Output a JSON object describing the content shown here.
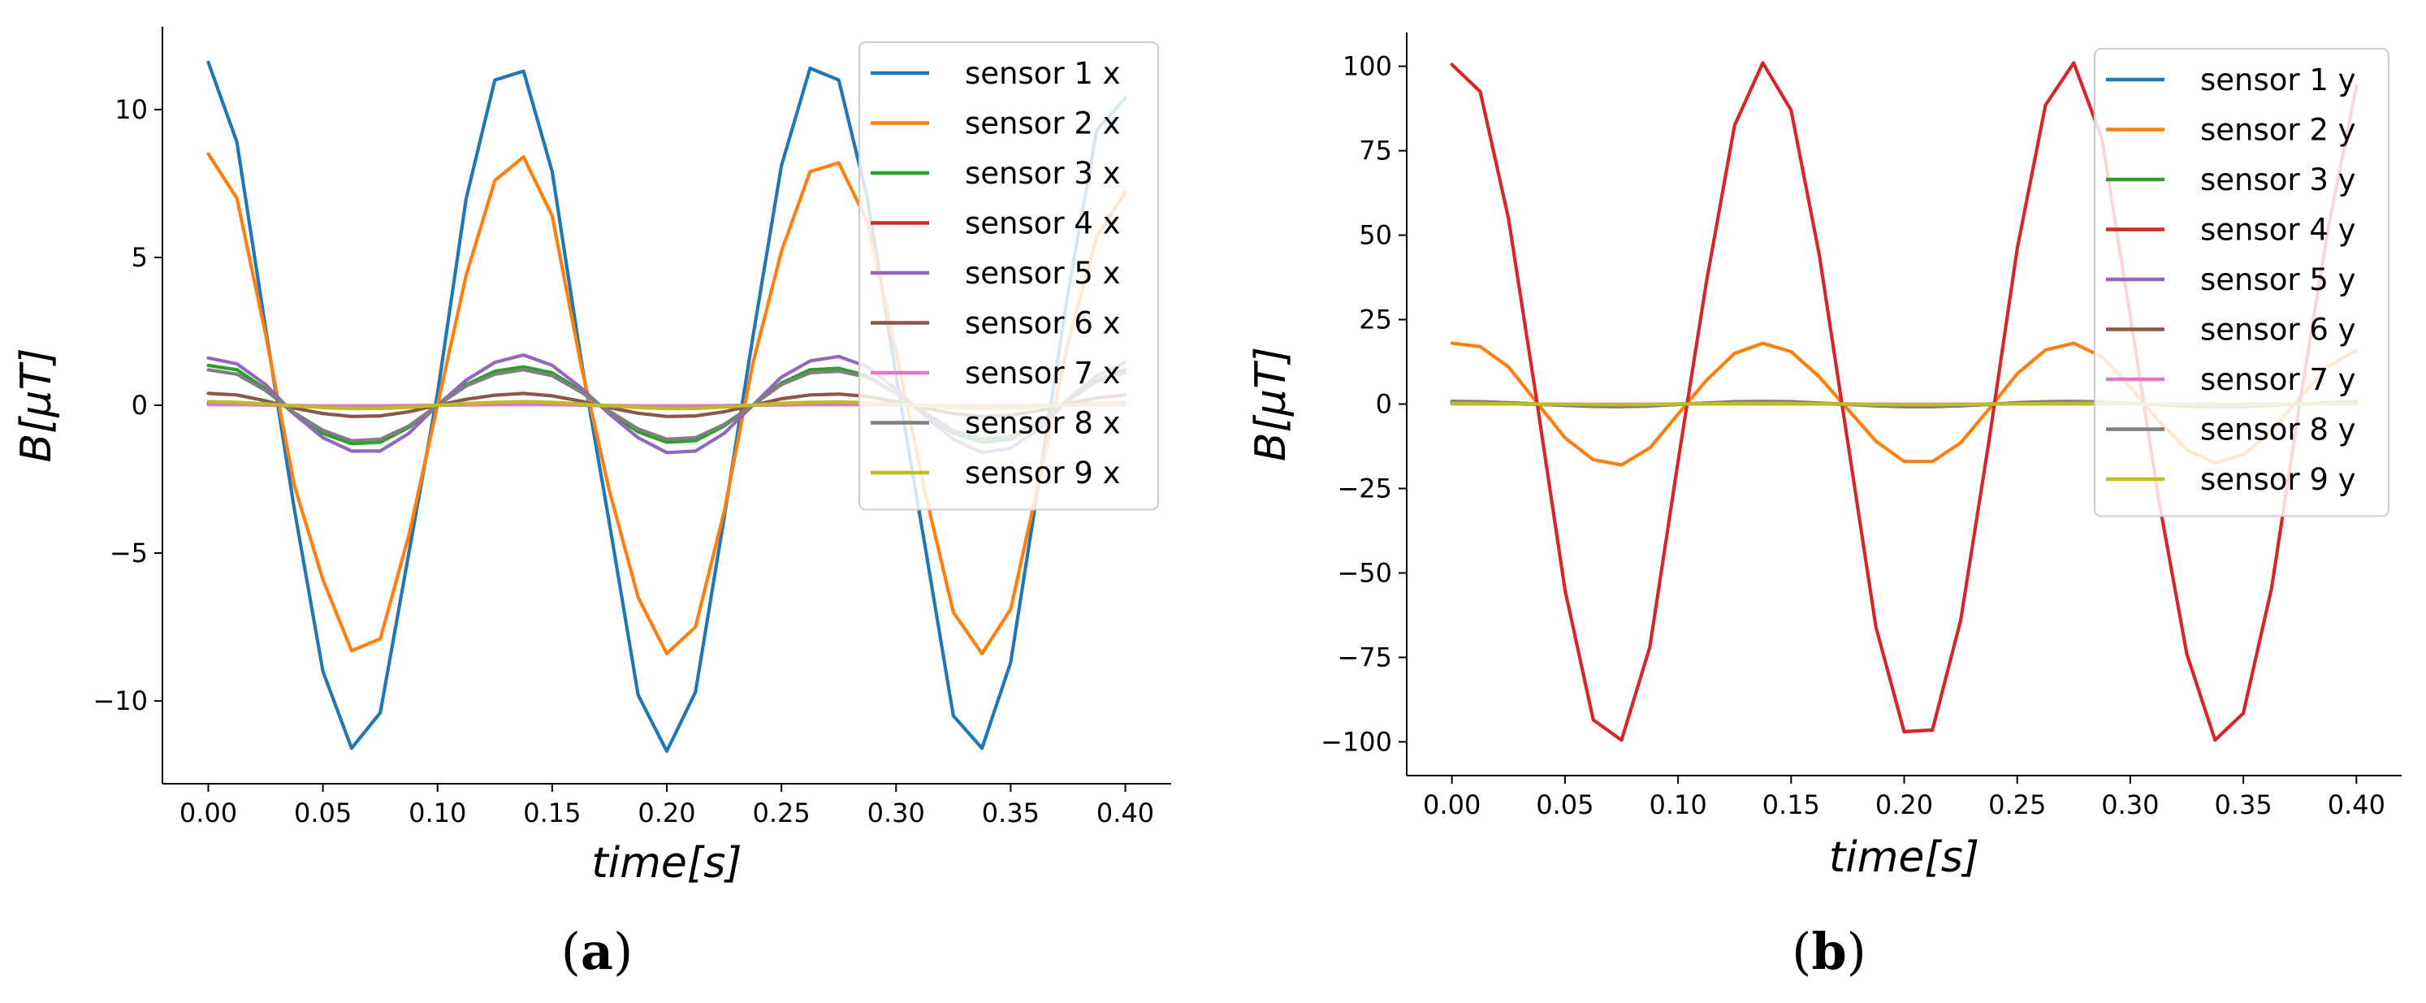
{
  "chart_data": [
    {
      "type": "line",
      "panel": "a",
      "caption_open": "(",
      "caption_letter": "a",
      "caption_close": ")",
      "xlabel": "time[s]",
      "ylabel": "B[μT]",
      "xlim": [
        -0.02,
        0.42
      ],
      "ylim": [
        -12.8,
        12.8
      ],
      "xticks": [
        0.0,
        0.05,
        0.1,
        0.15,
        0.2,
        0.25,
        0.3,
        0.35,
        0.4
      ],
      "xtick_labels": [
        "0.00",
        "0.05",
        "0.10",
        "0.15",
        "0.20",
        "0.25",
        "0.30",
        "0.35",
        "0.40"
      ],
      "yticks": [
        -10,
        -5,
        0,
        5,
        10
      ],
      "ytick_labels": [
        "−10",
        "−5",
        "0",
        "5",
        "10"
      ],
      "legend_position": "top-right",
      "x": [
        0.0,
        0.0125,
        0.025,
        0.0375,
        0.05,
        0.0625,
        0.075,
        0.0875,
        0.1,
        0.1125,
        0.125,
        0.1375,
        0.15,
        0.1625,
        0.175,
        0.1875,
        0.2,
        0.2125,
        0.225,
        0.2375,
        0.25,
        0.2625,
        0.275,
        0.2875,
        0.3,
        0.3125,
        0.325,
        0.3375,
        0.35,
        0.3625,
        0.375,
        0.3875,
        0.4
      ],
      "series": [
        {
          "name": "sensor 1 x",
          "color": "#1f77b4",
          "values": [
            11.6,
            8.9,
            2.6,
            -3.5,
            -9.0,
            -11.6,
            -10.4,
            -5.0,
            0.4,
            7.0,
            11.0,
            11.3,
            7.9,
            1.6,
            -4.0,
            -9.8,
            -11.7,
            -9.7,
            -3.8,
            2.3,
            8.1,
            11.4,
            11.0,
            7.0,
            1.0,
            -4.7,
            -10.5,
            -11.6,
            -8.7,
            -2.5,
            3.8,
            9.3,
            10.4
          ]
        },
        {
          "name": "sensor 2 x",
          "color": "#ff7f0e",
          "values": [
            8.5,
            7.0,
            2.4,
            -2.7,
            -5.9,
            -8.3,
            -7.9,
            -4.4,
            0.0,
            4.4,
            7.6,
            8.4,
            6.4,
            1.4,
            -2.9,
            -6.5,
            -8.4,
            -7.5,
            -3.6,
            1.4,
            5.2,
            7.9,
            8.2,
            6.2,
            1.8,
            -2.9,
            -7.0,
            -8.4,
            -6.9,
            -2.5,
            2.1,
            5.7,
            7.2
          ]
        },
        {
          "name": "sensor 3 x",
          "color": "#2ca02c",
          "values": [
            1.35,
            1.2,
            0.55,
            -0.3,
            -0.95,
            -1.3,
            -1.25,
            -0.75,
            0.0,
            0.7,
            1.15,
            1.3,
            1.1,
            0.5,
            -0.25,
            -0.9,
            -1.25,
            -1.2,
            -0.7,
            0.0,
            0.75,
            1.2,
            1.25,
            1.0,
            0.4,
            -0.3,
            -0.95,
            -1.25,
            -1.15,
            -0.6,
            0.2,
            0.85,
            1.2
          ]
        },
        {
          "name": "sensor 4 x",
          "color": "#d62728",
          "values": [
            0.05,
            0.04,
            0.01,
            -0.02,
            -0.04,
            -0.05,
            -0.04,
            -0.02,
            0.0,
            0.02,
            0.04,
            0.05,
            0.04,
            0.01,
            -0.02,
            -0.04,
            -0.05,
            -0.04,
            -0.02,
            0.0,
            0.03,
            0.04,
            0.05,
            0.04,
            0.01,
            -0.02,
            -0.04,
            -0.05,
            -0.04,
            -0.02,
            0.01,
            0.03,
            0.04
          ]
        },
        {
          "name": "sensor 5 x",
          "color": "#9467bd",
          "values": [
            1.6,
            1.4,
            0.7,
            -0.3,
            -1.1,
            -1.55,
            -1.55,
            -0.95,
            0.0,
            0.85,
            1.45,
            1.7,
            1.35,
            0.6,
            -0.3,
            -1.1,
            -1.6,
            -1.55,
            -0.95,
            0.0,
            0.95,
            1.5,
            1.65,
            1.3,
            0.55,
            -0.35,
            -1.15,
            -1.6,
            -1.45,
            -0.8,
            0.2,
            1.0,
            1.45
          ]
        },
        {
          "name": "sensor 6 x",
          "color": "#8c564b",
          "values": [
            0.4,
            0.35,
            0.15,
            -0.1,
            -0.28,
            -0.38,
            -0.36,
            -0.22,
            0.0,
            0.2,
            0.34,
            0.4,
            0.32,
            0.14,
            -0.08,
            -0.27,
            -0.38,
            -0.36,
            -0.22,
            0.0,
            0.22,
            0.35,
            0.38,
            0.3,
            0.12,
            -0.1,
            -0.28,
            -0.38,
            -0.34,
            -0.18,
            0.05,
            0.25,
            0.35
          ]
        },
        {
          "name": "sensor 7 x",
          "color": "#e377c2",
          "values": [
            0.02,
            0.02,
            0.01,
            -0.01,
            -0.02,
            -0.02,
            -0.02,
            -0.01,
            0.0,
            0.01,
            0.02,
            0.02,
            0.02,
            0.01,
            -0.01,
            -0.02,
            -0.02,
            -0.02,
            -0.01,
            0.0,
            0.01,
            0.02,
            0.02,
            0.02,
            0.01,
            -0.01,
            -0.02,
            -0.02,
            -0.02,
            -0.01,
            0.0,
            0.01,
            0.02
          ]
        },
        {
          "name": "sensor 8 x",
          "color": "#7f7f7f",
          "values": [
            1.2,
            1.05,
            0.5,
            -0.25,
            -0.85,
            -1.2,
            -1.15,
            -0.7,
            0.0,
            0.65,
            1.05,
            1.2,
            1.0,
            0.45,
            -0.2,
            -0.8,
            -1.15,
            -1.1,
            -0.65,
            0.0,
            0.7,
            1.1,
            1.15,
            0.95,
            0.4,
            -0.25,
            -0.85,
            -1.15,
            -1.05,
            -0.55,
            0.15,
            0.8,
            1.1
          ]
        },
        {
          "name": "sensor 9 x",
          "color": "#bcbd22",
          "values": [
            0.12,
            0.1,
            0.05,
            -0.02,
            -0.08,
            -0.11,
            -0.11,
            -0.07,
            0.0,
            0.06,
            0.1,
            0.12,
            0.1,
            0.04,
            -0.02,
            -0.08,
            -0.11,
            -0.11,
            -0.06,
            0.0,
            0.07,
            0.1,
            0.11,
            0.09,
            0.04,
            -0.02,
            -0.08,
            -0.11,
            -0.1,
            -0.05,
            0.01,
            0.07,
            0.1
          ]
        }
      ]
    },
    {
      "type": "line",
      "panel": "b",
      "caption_open": "(",
      "caption_letter": "b",
      "caption_close": ")",
      "xlabel": "time[s]",
      "ylabel": "B[μT]",
      "xlim": [
        -0.02,
        0.42
      ],
      "ylim": [
        -110,
        110
      ],
      "xticks": [
        0.0,
        0.05,
        0.1,
        0.15,
        0.2,
        0.25,
        0.3,
        0.35,
        0.4
      ],
      "xtick_labels": [
        "0.00",
        "0.05",
        "0.10",
        "0.15",
        "0.20",
        "0.25",
        "0.30",
        "0.35",
        "0.40"
      ],
      "yticks": [
        -100,
        -75,
        -50,
        -25,
        0,
        25,
        50,
        75,
        100
      ],
      "ytick_labels": [
        "−100",
        "−75",
        "−50",
        "−25",
        "0",
        "25",
        "50",
        "75",
        "100"
      ],
      "legend_position": "top-right",
      "x": [
        0.0,
        0.0125,
        0.025,
        0.0375,
        0.05,
        0.0625,
        0.075,
        0.0875,
        0.1,
        0.1125,
        0.125,
        0.1375,
        0.15,
        0.1625,
        0.175,
        0.1875,
        0.2,
        0.2125,
        0.225,
        0.2375,
        0.25,
        0.2625,
        0.275,
        0.2875,
        0.3,
        0.3125,
        0.325,
        0.3375,
        0.35,
        0.3625,
        0.375,
        0.3875,
        0.4
      ],
      "series": [
        {
          "name": "sensor 1 y",
          "color": "#1f77b4",
          "values": [
            0.4,
            0.3,
            0.1,
            -0.1,
            -0.3,
            -0.4,
            -0.4,
            -0.2,
            0.0,
            0.2,
            0.4,
            0.4,
            0.3,
            0.1,
            -0.1,
            -0.3,
            -0.4,
            -0.4,
            -0.2,
            0.0,
            0.2,
            0.4,
            0.4,
            0.3,
            0.1,
            -0.1,
            -0.3,
            -0.4,
            -0.4,
            -0.2,
            0.0,
            0.2,
            0.3
          ]
        },
        {
          "name": "sensor 2 y",
          "color": "#ff7f0e",
          "values": [
            18.0,
            17.0,
            11.0,
            0.5,
            -10.0,
            -16.5,
            -18.0,
            -13.0,
            -3.0,
            7.0,
            15.0,
            18.0,
            15.5,
            8.0,
            -1.5,
            -11.0,
            -17.0,
            -17.0,
            -11.5,
            -1.5,
            9.0,
            16.0,
            18.0,
            14.0,
            5.0,
            -5.0,
            -13.5,
            -17.5,
            -15.0,
            -8.0,
            2.0,
            11.0,
            16.0
          ]
        },
        {
          "name": "sensor 3 y",
          "color": "#2ca02c",
          "values": [
            0.3,
            0.25,
            0.1,
            -0.05,
            -0.2,
            -0.3,
            -0.3,
            -0.2,
            0.0,
            0.15,
            0.28,
            0.3,
            0.25,
            0.1,
            -0.05,
            -0.2,
            -0.3,
            -0.3,
            -0.2,
            0.0,
            0.15,
            0.28,
            0.3,
            0.22,
            0.08,
            -0.08,
            -0.22,
            -0.3,
            -0.28,
            -0.15,
            0.03,
            0.18,
            0.27
          ]
        },
        {
          "name": "sensor 4 y",
          "color": "#d62728",
          "values": [
            100.5,
            92.5,
            55.0,
            1.0,
            -55.0,
            -93.5,
            -99.5,
            -72.0,
            -17.0,
            36.0,
            82.5,
            101.0,
            87.0,
            44.0,
            -11.0,
            -66.0,
            -97.0,
            -96.5,
            -64.0,
            -11.0,
            46.0,
            88.5,
            101.0,
            78.5,
            26.0,
            -28.0,
            -74.0,
            -99.5,
            -91.5,
            -54.5,
            0.5,
            52.0,
            94.0
          ]
        },
        {
          "name": "sensor 5 y",
          "color": "#9467bd",
          "values": [
            0.6,
            0.5,
            0.3,
            0.0,
            -0.3,
            -0.5,
            -0.6,
            -0.4,
            -0.1,
            0.2,
            0.5,
            0.6,
            0.5,
            0.2,
            -0.1,
            -0.4,
            -0.6,
            -0.6,
            -0.4,
            -0.1,
            0.3,
            0.5,
            0.6,
            0.5,
            0.1,
            -0.2,
            -0.4,
            -0.6,
            -0.5,
            -0.3,
            0.0,
            0.3,
            0.5
          ]
        },
        {
          "name": "sensor 6 y",
          "color": "#8c564b",
          "values": [
            0.8,
            0.7,
            0.4,
            0.0,
            -0.4,
            -0.7,
            -0.8,
            -0.6,
            -0.1,
            0.3,
            0.7,
            0.8,
            0.7,
            0.3,
            -0.1,
            -0.5,
            -0.8,
            -0.8,
            -0.5,
            -0.1,
            0.4,
            0.7,
            0.8,
            0.6,
            0.2,
            -0.2,
            -0.6,
            -0.8,
            -0.7,
            -0.4,
            0.0,
            0.4,
            0.7
          ]
        },
        {
          "name": "sensor 7 y",
          "color": "#e377c2",
          "values": [
            0.05,
            0.04,
            0.02,
            0.0,
            -0.02,
            -0.04,
            -0.05,
            -0.03,
            0.0,
            0.02,
            0.04,
            0.05,
            0.04,
            0.02,
            0.0,
            -0.03,
            -0.05,
            -0.05,
            -0.03,
            0.0,
            0.02,
            0.04,
            0.05,
            0.04,
            0.01,
            -0.01,
            -0.03,
            -0.05,
            -0.04,
            -0.02,
            0.0,
            0.02,
            0.04
          ]
        },
        {
          "name": "sensor 8 y",
          "color": "#7f7f7f",
          "values": [
            0.7,
            0.6,
            0.4,
            0.0,
            -0.4,
            -0.6,
            -0.7,
            -0.5,
            -0.1,
            0.3,
            0.6,
            0.7,
            0.6,
            0.3,
            -0.1,
            -0.5,
            -0.7,
            -0.7,
            -0.5,
            -0.1,
            0.3,
            0.6,
            0.7,
            0.5,
            0.2,
            -0.2,
            -0.5,
            -0.7,
            -0.6,
            -0.4,
            0.0,
            0.4,
            0.6
          ]
        },
        {
          "name": "sensor 9 y",
          "color": "#bcbd22",
          "values": [
            0.2,
            0.15,
            0.1,
            0.0,
            -0.1,
            -0.15,
            -0.2,
            -0.12,
            0.0,
            0.08,
            0.15,
            0.2,
            0.15,
            0.08,
            0.0,
            -0.12,
            -0.2,
            -0.2,
            -0.12,
            0.0,
            0.08,
            0.15,
            0.2,
            0.15,
            0.05,
            -0.05,
            -0.12,
            -0.2,
            -0.15,
            -0.1,
            0.0,
            0.1,
            0.15
          ]
        }
      ]
    }
  ]
}
